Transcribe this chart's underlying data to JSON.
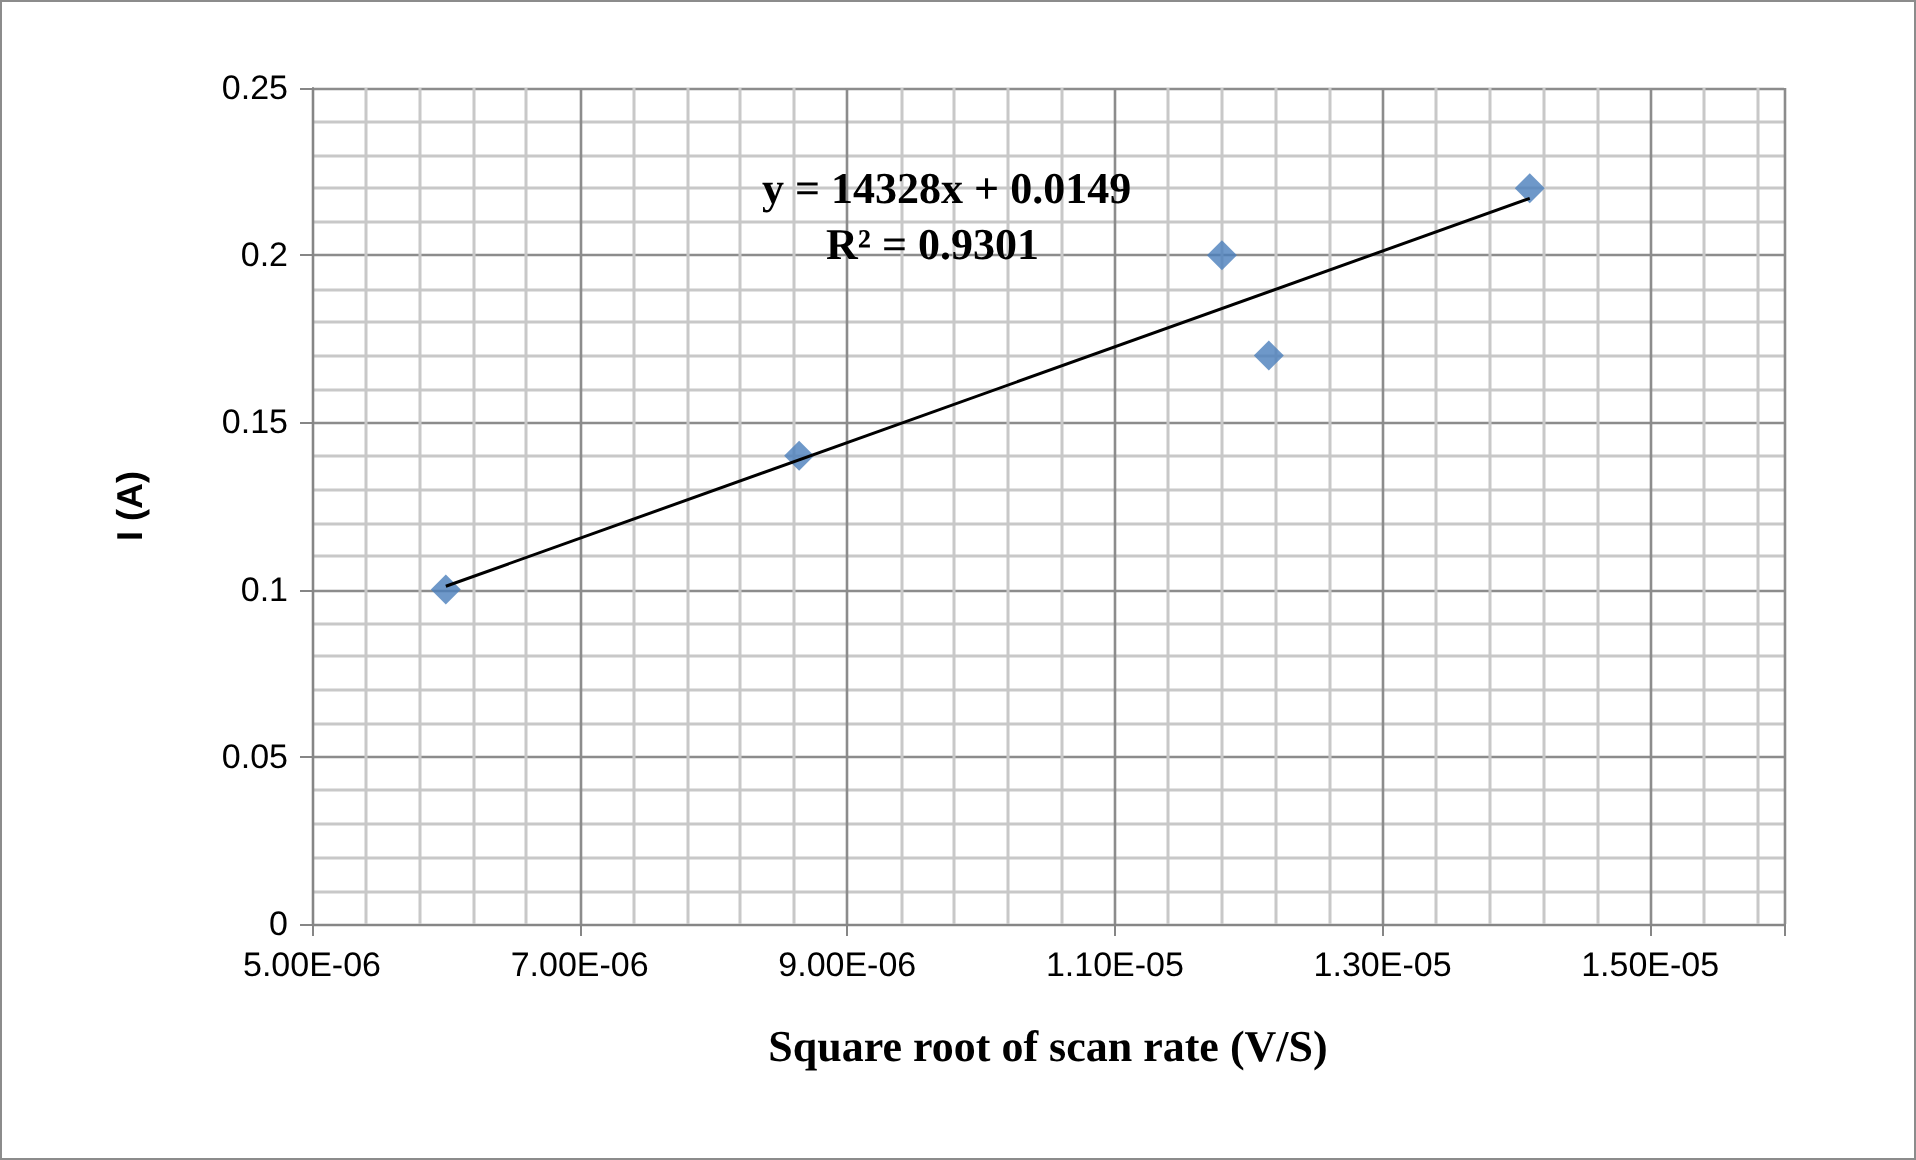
{
  "chart_data": {
    "type": "scatter",
    "xlabel": "Square root of scan rate (V/S)",
    "ylabel": "I (A)",
    "annotations": [
      "y = 14328x + 0.0149",
      "R² = 0.9301"
    ],
    "series": [
      {
        "color": "#4a7ebb",
        "marker": "diamond",
        "x": [
          6e-06,
          8.64e-06,
          1.18e-05,
          1.215e-05,
          1.41e-05
        ],
        "values": [
          0.1,
          0.14,
          0.2,
          0.17,
          0.22
        ]
      },
      {
        "type": "line",
        "color": "#000000",
        "marker": "none",
        "x": [
          6e-06,
          1.41e-05
        ],
        "values": [
          0.101,
          0.217
        ]
      }
    ],
    "xlim": [
      5e-06,
      1.6e-05
    ],
    "xticks": [
      {
        "value": 5e-06,
        "label": "5.00E-06"
      },
      {
        "value": 7e-06,
        "label": "7.00E-06"
      },
      {
        "value": 9e-06,
        "label": "9.00E-06"
      },
      {
        "value": 1.1e-05,
        "label": "1.10E-05"
      },
      {
        "value": 1.3e-05,
        "label": "1.30E-05"
      },
      {
        "value": 1.5e-05,
        "label": "1.50E-05"
      }
    ],
    "ylim": [
      0,
      0.25
    ],
    "yticks": [
      0,
      0.05,
      0.1,
      0.15,
      0.2,
      0.25
    ],
    "grid": true
  }
}
